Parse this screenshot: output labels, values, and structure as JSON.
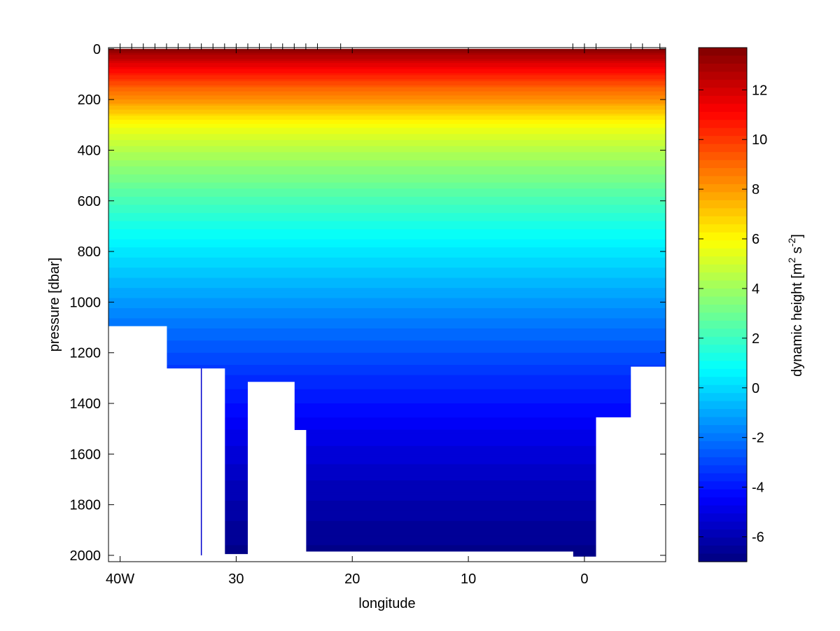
{
  "chart_data": {
    "type": "heatmap",
    "xlabel": "longitude",
    "ylabel": "pressure [dbar]",
    "colorbar_label": "dynamic height [m² s⁻²]",
    "colorbar_label_parts": {
      "prefix": "dynamic height [m",
      "sup1": "2",
      "mid": " s",
      "sup2": "-2",
      "suffix": "]"
    },
    "xlim": [
      -41,
      7
    ],
    "ylim": [
      2025,
      -5
    ],
    "y_reversed": true,
    "x_ticks": [
      {
        "value": -40,
        "label": "40W"
      },
      {
        "value": -30,
        "label": "30"
      },
      {
        "value": -20,
        "label": "20"
      },
      {
        "value": -10,
        "label": "10"
      },
      {
        "value": 0,
        "label": "0"
      }
    ],
    "y_ticks": [
      {
        "value": 0,
        "label": "0"
      },
      {
        "value": 200,
        "label": "200"
      },
      {
        "value": 400,
        "label": "400"
      },
      {
        "value": 600,
        "label": "600"
      },
      {
        "value": 800,
        "label": "800"
      },
      {
        "value": 1000,
        "label": "1000"
      },
      {
        "value": 1200,
        "label": "1200"
      },
      {
        "value": 1400,
        "label": "1400"
      },
      {
        "value": 1600,
        "label": "1600"
      },
      {
        "value": 1800,
        "label": "1800"
      },
      {
        "value": 2000,
        "label": "2000"
      }
    ],
    "clim": [
      -7,
      13.7
    ],
    "colormap": "jet",
    "colorbar_ticks": [
      {
        "value": -6,
        "label": "-6"
      },
      {
        "value": -4,
        "label": "-4"
      },
      {
        "value": -2,
        "label": "-2"
      },
      {
        "value": 0,
        "label": "0"
      },
      {
        "value": 2,
        "label": "2"
      },
      {
        "value": 4,
        "label": "4"
      },
      {
        "value": 6,
        "label": "6"
      },
      {
        "value": 8,
        "label": "8"
      },
      {
        "value": 10,
        "label": "10"
      },
      {
        "value": 12,
        "label": "12"
      }
    ],
    "dynamic_height_profile": {
      "pressure": [
        0,
        50,
        100,
        150,
        200,
        250,
        300,
        400,
        500,
        600,
        700,
        800,
        900,
        1000,
        1100,
        1200,
        1300,
        1400,
        1500,
        1600,
        1700,
        1800,
        1900,
        2000
      ],
      "value": [
        13.5,
        12.0,
        10.6,
        9.3,
        8.2,
        7.0,
        5.8,
        4.4,
        3.3,
        2.2,
        1.2,
        0.3,
        -0.5,
        -1.3,
        -2.1,
        -2.8,
        -3.5,
        -4.1,
        -4.7,
        -5.2,
        -5.7,
        -6.1,
        -6.5,
        -6.8
      ]
    },
    "station_longitudes": [
      -40.0,
      -39.0,
      -38.0,
      -37.0,
      -36.0,
      -35.0,
      -34.0,
      -33.0,
      -32.0,
      -31.0,
      -30.0,
      -29.0,
      -28.0,
      -27.0,
      -26.0,
      -25.0,
      -24.0,
      -23.0,
      -21.0,
      -1.0,
      0.0,
      1.0,
      4.0,
      5.0,
      6.5
    ],
    "bottom_pressure_profile": [
      {
        "lon_start": -41.0,
        "lon_end": -36.0,
        "pressure": 1095
      },
      {
        "lon_start": -36.0,
        "lon_end": -31.0,
        "pressure": 1262
      },
      {
        "lon_start": -31.0,
        "lon_end": -29.0,
        "pressure": 1995
      },
      {
        "lon_start": -29.0,
        "lon_end": -25.0,
        "pressure": 1315
      },
      {
        "lon_start": -25.0,
        "lon_end": -24.0,
        "pressure": 1505
      },
      {
        "lon_start": -24.0,
        "lon_end": -1.0,
        "pressure": 1985
      },
      {
        "lon_start": -1.0,
        "lon_end": 1.0,
        "pressure": 2005
      },
      {
        "lon_start": 1.0,
        "lon_end": 4.0,
        "pressure": 1455
      },
      {
        "lon_start": 4.0,
        "lon_end": 7.0,
        "pressure": 1255
      }
    ],
    "isolated_profile": {
      "lon": -33.0,
      "pressure_top": 1262,
      "pressure_bottom": 2000,
      "color": "#0000cc"
    }
  }
}
